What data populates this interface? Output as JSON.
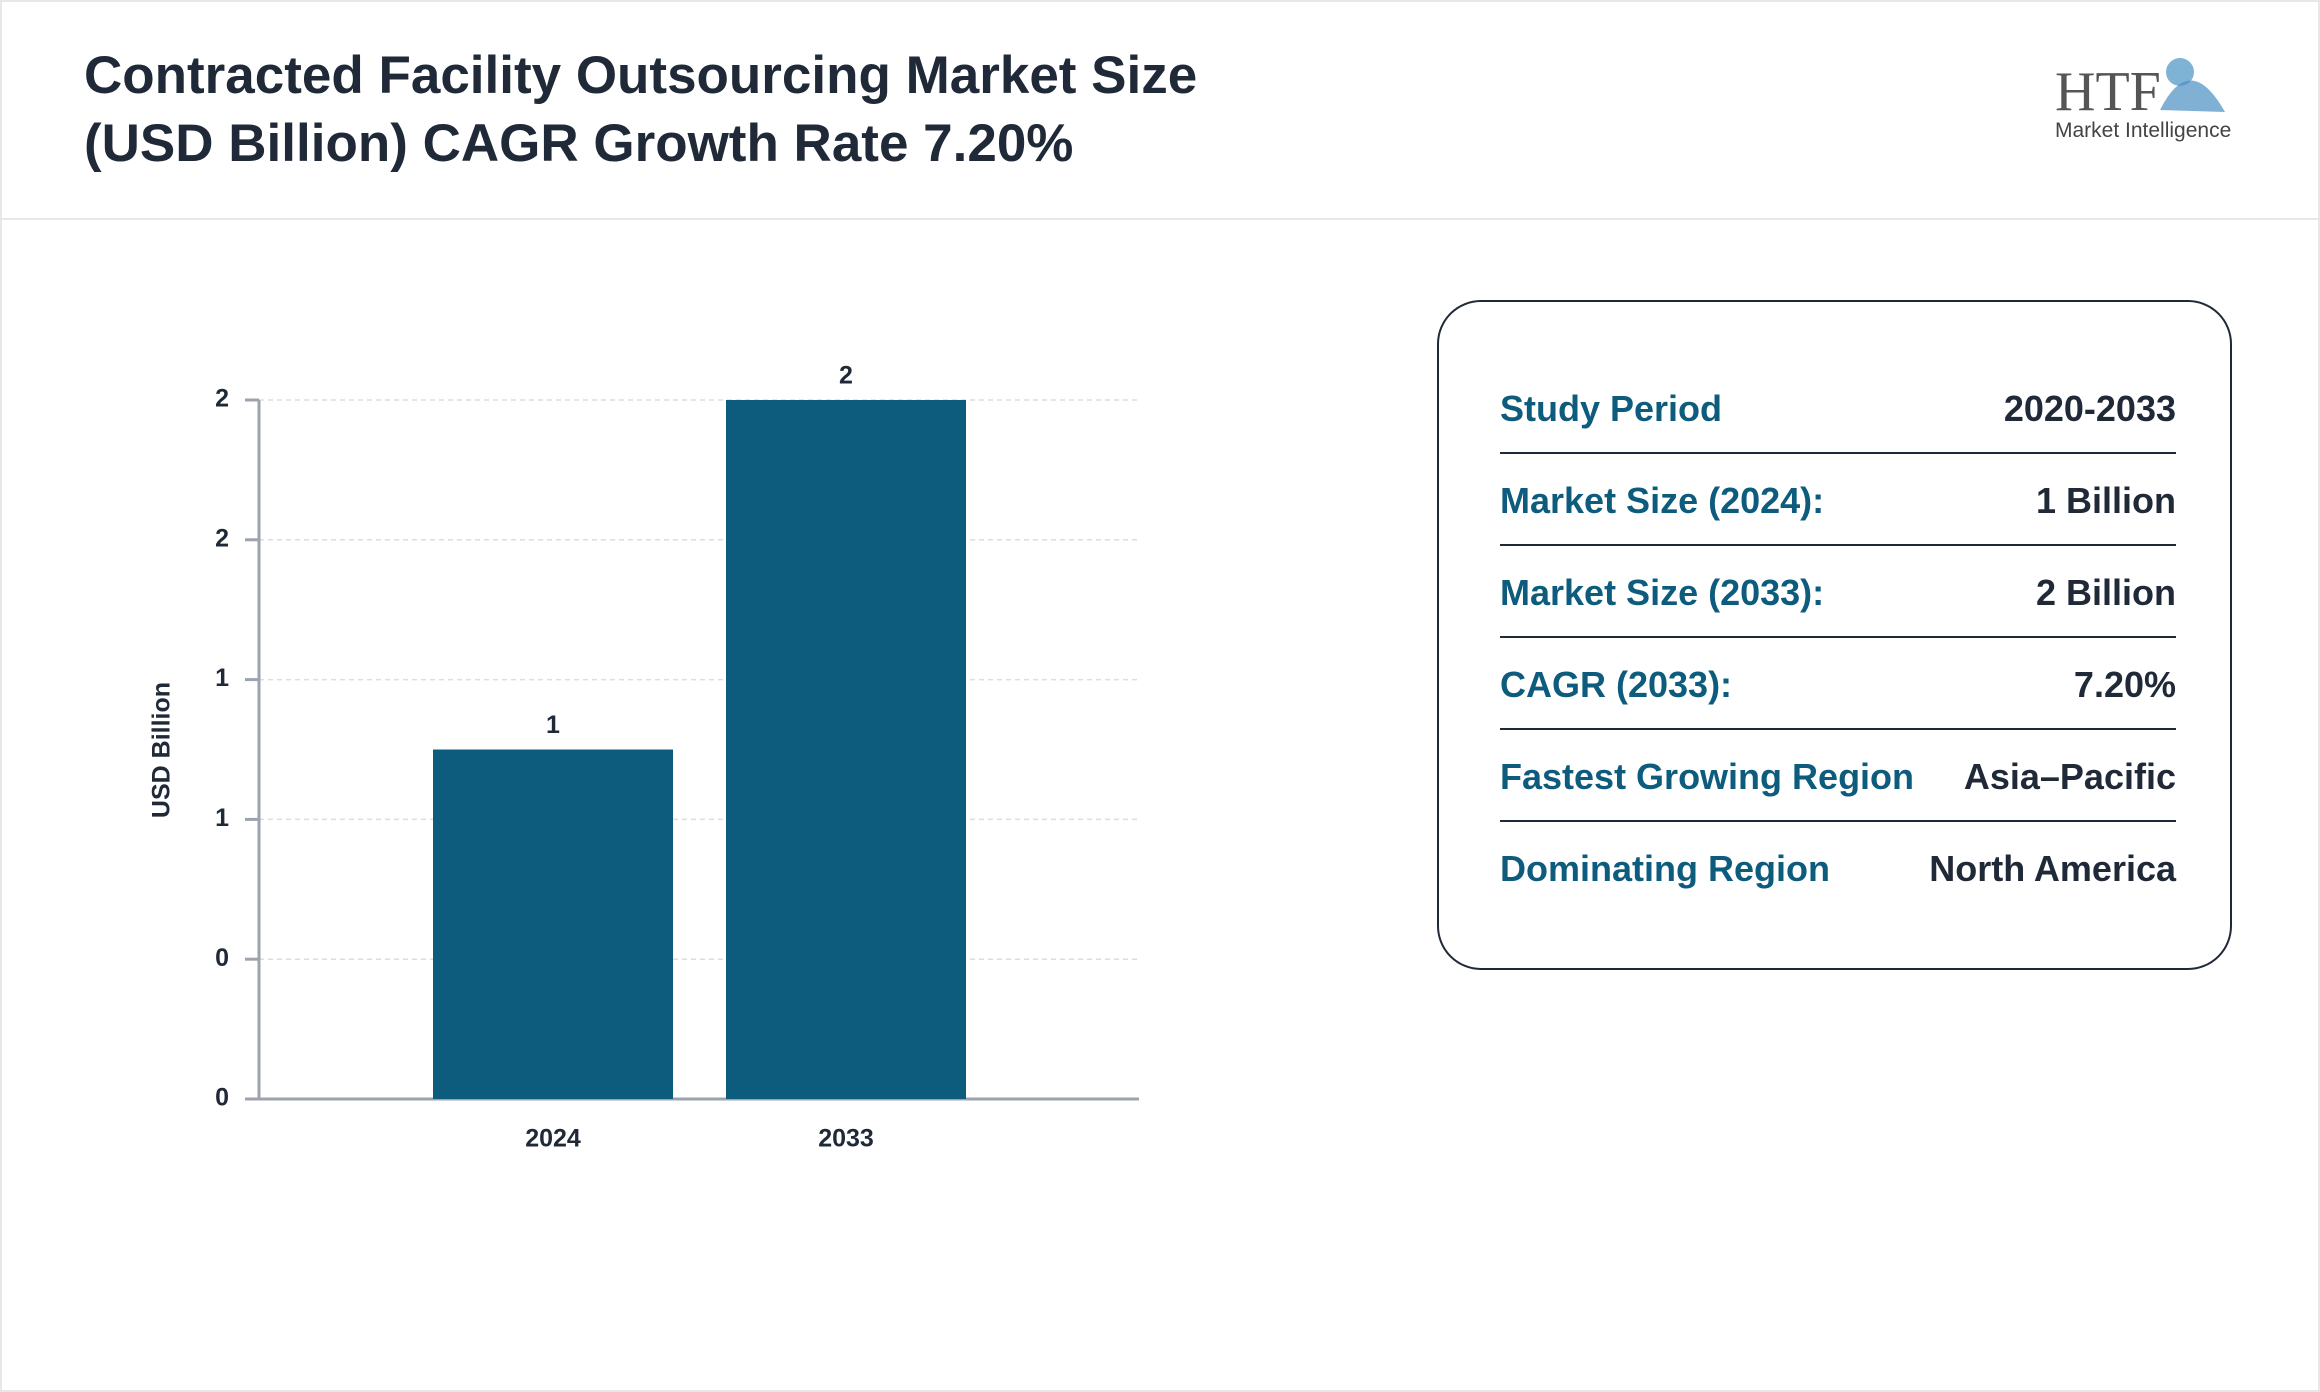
{
  "header": {
    "title": [
      "Contracted Facility Outsourcing Market Size",
      "(USD Billion) CAGR Growth Rate 7.20%"
    ],
    "logo": {
      "mark": "HTF",
      "tagline": "Market Intelligence"
    }
  },
  "chart_data": {
    "type": "bar",
    "y_label": "USD Billion",
    "categories": [
      "2024",
      "2033"
    ],
    "values": [
      1,
      2
    ],
    "color": "#0d5c7d",
    "ylim": [
      0,
      2
    ],
    "yticks": [
      0,
      {
        "value": 0.4,
        "label": "0"
      },
      {
        "value": 0.8,
        "label": "1"
      },
      {
        "value": 1.2,
        "label": "1"
      },
      {
        "value": 1.6,
        "label": "2"
      },
      2
    ],
    "grid": true
  },
  "info": {
    "rows": [
      [
        "Study Period",
        "2020-2033"
      ],
      [
        "Market Size (2024):",
        "1 Billion"
      ],
      [
        "Market Size (2033):",
        "2 Billion"
      ],
      [
        "CAGR (2033):",
        "7.20%"
      ],
      [
        "Fastest Growing Region",
        "Asia–Pacific"
      ],
      [
        "Dominating Region",
        "North America"
      ]
    ]
  }
}
